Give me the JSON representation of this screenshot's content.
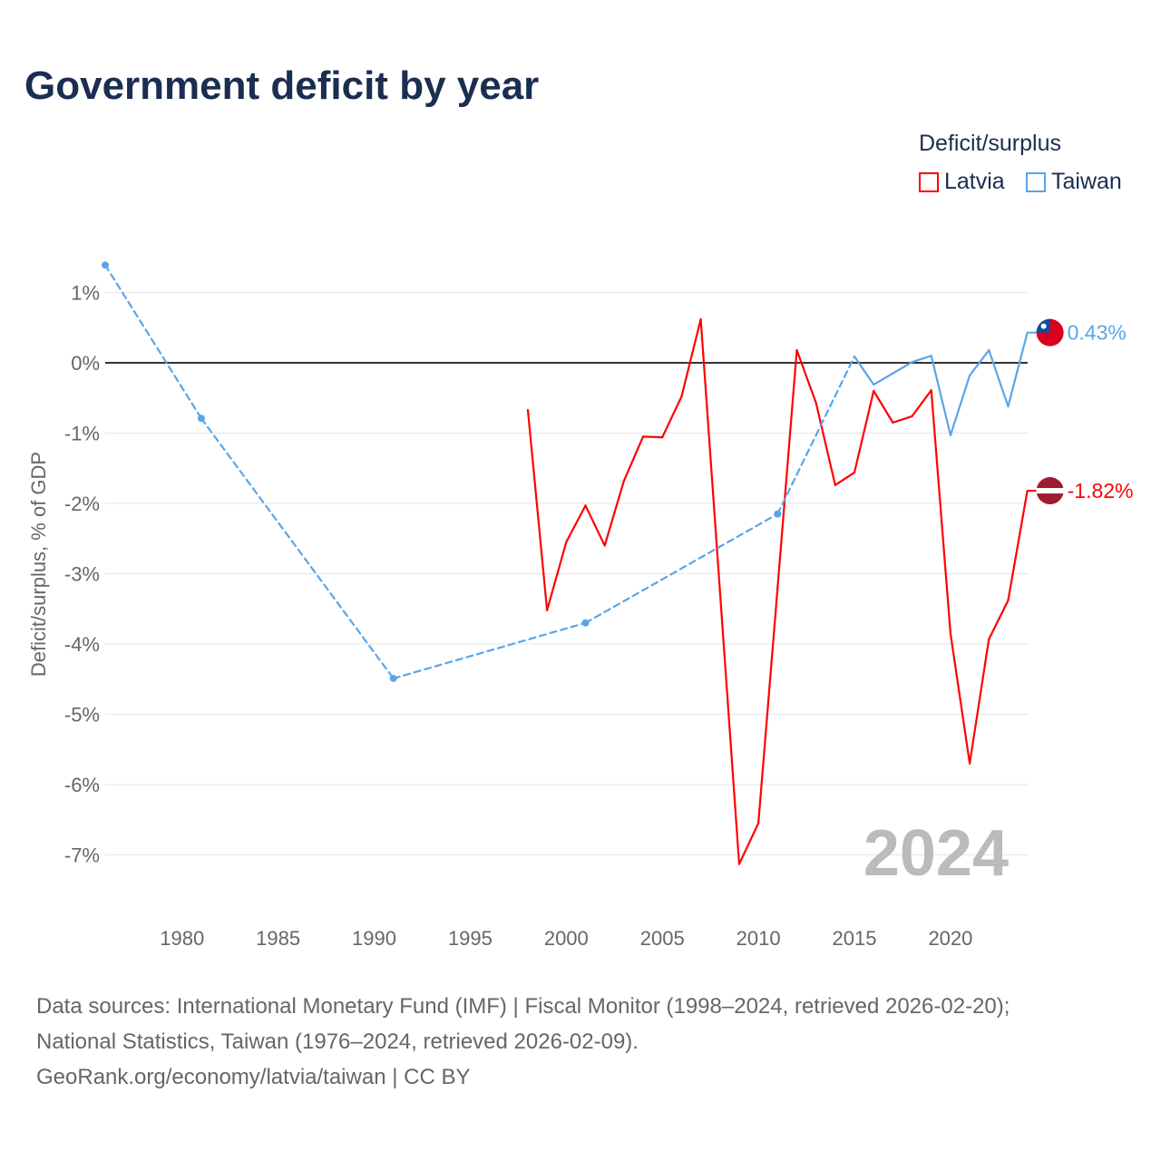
{
  "title": "Government deficit by year",
  "legend": {
    "title": "Deficit/surplus",
    "items": [
      {
        "label": "Latvia",
        "color": "#ff0000"
      },
      {
        "label": "Taiwan",
        "color": "#5aa5e8"
      }
    ]
  },
  "source": {
    "line1": "Data sources: International Monetary Fund (IMF) | Fiscal Monitor (1998–2024, retrieved 2026-02-20);",
    "line2": "National Statistics, Taiwan (1976–2024, retrieved 2026-02-09).",
    "line3": "GeoRank.org/economy/latvia/taiwan | CC BY"
  },
  "chart_data": {
    "type": "line",
    "title": "Government deficit by year",
    "ylabel": "Deficit/surplus, % of GDP",
    "xlabel": "",
    "xlim": [
      1976,
      2024
    ],
    "ylim": [
      -7.8,
      1.4
    ],
    "xticks": [
      "1980",
      "1985",
      "1990",
      "1995",
      "2000",
      "2005",
      "2010",
      "2015",
      "2020"
    ],
    "yticks": [
      "1%",
      "0%",
      "-1%",
      "-2%",
      "-3%",
      "-4%",
      "-5%",
      "-6%",
      "-7%"
    ],
    "year_watermark": "2024",
    "series": [
      {
        "name": "Latvia",
        "color": "#ff0000",
        "end_label": "-1.82%",
        "x": [
          1998,
          1999,
          2000,
          2001,
          2002,
          2003,
          2004,
          2005,
          2006,
          2007,
          2008,
          2009,
          2010,
          2011,
          2012,
          2013,
          2014,
          2015,
          2016,
          2017,
          2018,
          2019,
          2020,
          2021,
          2022,
          2023,
          2024
        ],
        "y": [
          -0.67,
          -3.52,
          -2.55,
          -2.03,
          -2.6,
          -1.68,
          -1.05,
          -1.06,
          -0.48,
          0.62,
          -3.25,
          -7.13,
          -6.55,
          -3.2,
          0.18,
          -0.57,
          -1.74,
          -1.56,
          -0.4,
          -0.85,
          -0.76,
          -0.39,
          -3.85,
          -5.7,
          -3.93,
          -3.38,
          -1.82
        ]
      },
      {
        "name": "Taiwan",
        "color": "#5aa5e8",
        "end_label": "0.43%",
        "x": [
          1976,
          1981,
          1991,
          2001,
          2011,
          2015,
          2016,
          2017,
          2018,
          2019,
          2020,
          2021,
          2022,
          2023,
          2024
        ],
        "y": [
          1.39,
          -0.79,
          -4.49,
          -3.7,
          -2.15,
          0.09,
          -0.31,
          -0.15,
          0.01,
          0.1,
          -1.03,
          -0.18,
          0.18,
          -0.62,
          0.43
        ]
      }
    ]
  }
}
